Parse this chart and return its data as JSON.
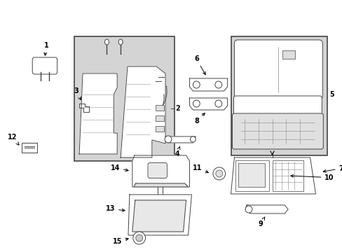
{
  "background_color": "#ffffff",
  "fig_width": 4.89,
  "fig_height": 3.6,
  "dpi": 100,
  "line_color": "#444444",
  "gray_fill": "#d4d4d4",
  "light_gray": "#e8e8e8",
  "lw": 0.7
}
